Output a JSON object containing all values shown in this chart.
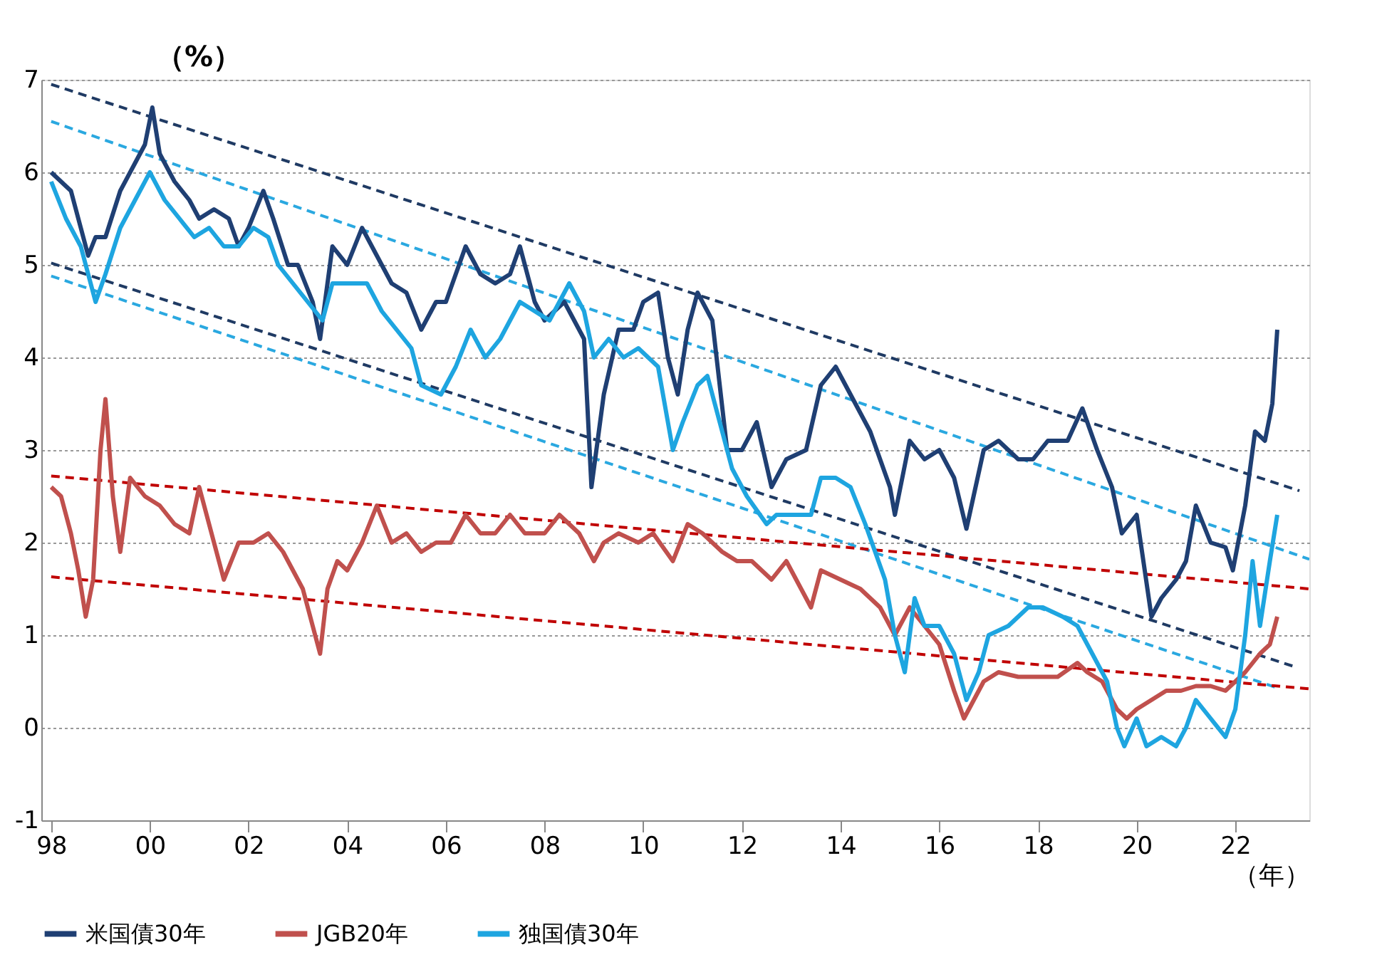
{
  "chart_data": {
    "type": "line",
    "xlabel": "（年）",
    "ylabel": "（%）",
    "xlim": [
      1997.8,
      2023.5
    ],
    "ylim": [
      -1,
      7
    ],
    "xticks": [
      {
        "value": 1998,
        "label": "98"
      },
      {
        "value": 2000,
        "label": "00"
      },
      {
        "value": 2002,
        "label": "02"
      },
      {
        "value": 2004,
        "label": "04"
      },
      {
        "value": 2006,
        "label": "06"
      },
      {
        "value": 2008,
        "label": "08"
      },
      {
        "value": 2010,
        "label": "10"
      },
      {
        "value": 2012,
        "label": "12"
      },
      {
        "value": 2014,
        "label": "14"
      },
      {
        "value": 2016,
        "label": "16"
      },
      {
        "value": 2018,
        "label": "18"
      },
      {
        "value": 2020,
        "label": "20"
      },
      {
        "value": 2022,
        "label": "22"
      }
    ],
    "yticks": [
      -1,
      0,
      1,
      2,
      3,
      4,
      5,
      6,
      7
    ],
    "grid": "y",
    "legend": "bottom",
    "marker": "none",
    "line_style": "solid",
    "series": [
      {
        "name": "米国債30年",
        "color": "#1f3f73",
        "x": [
          1998.0,
          1998.2,
          1998.4,
          1998.6,
          1998.75,
          1998.9,
          1999.1,
          1999.4,
          1999.7,
          1999.9,
          2000.05,
          2000.2,
          2000.5,
          2000.8,
          2001.0,
          2001.3,
          2001.6,
          2001.8,
          2002.0,
          2002.3,
          2002.5,
          2002.8,
          2003.0,
          2003.3,
          2003.45,
          2003.7,
          2004.0,
          2004.3,
          2004.6,
          2004.9,
          2005.2,
          2005.5,
          2005.8,
          2006.0,
          2006.4,
          2006.7,
          2007.0,
          2007.3,
          2007.5,
          2007.8,
          2008.0,
          2008.4,
          2008.6,
          2008.8,
          2008.95,
          2009.2,
          2009.5,
          2009.8,
          2010.0,
          2010.3,
          2010.5,
          2010.7,
          2010.9,
          2011.1,
          2011.4,
          2011.7,
          2012.0,
          2012.3,
          2012.6,
          2012.9,
          2013.3,
          2013.6,
          2013.9,
          2014.2,
          2014.6,
          2015.0,
          2015.1,
          2015.4,
          2015.7,
          2016.0,
          2016.3,
          2016.55,
          2016.9,
          2017.2,
          2017.6,
          2017.9,
          2018.2,
          2018.6,
          2018.9,
          2019.2,
          2019.5,
          2019.7,
          2020.0,
          2020.3,
          2020.5,
          2020.8,
          2021.0,
          2021.2,
          2021.5,
          2021.8,
          2021.95,
          2022.2,
          2022.4,
          2022.6,
          2022.75,
          2022.85
        ],
        "values": [
          6.0,
          5.9,
          5.8,
          5.4,
          5.1,
          5.3,
          5.3,
          5.8,
          6.1,
          6.3,
          6.7,
          6.2,
          5.9,
          5.7,
          5.5,
          5.6,
          5.5,
          5.2,
          5.4,
          5.8,
          5.5,
          5.0,
          5.0,
          4.6,
          4.2,
          5.2,
          5.0,
          5.4,
          5.1,
          4.8,
          4.7,
          4.3,
          4.6,
          4.6,
          5.2,
          4.9,
          4.8,
          4.9,
          5.2,
          4.6,
          4.4,
          4.6,
          4.4,
          4.2,
          2.6,
          3.6,
          4.3,
          4.3,
          4.6,
          4.7,
          4.0,
          3.6,
          4.3,
          4.7,
          4.4,
          3.0,
          3.0,
          3.3,
          2.6,
          2.9,
          3.0,
          3.7,
          3.9,
          3.6,
          3.2,
          2.6,
          2.3,
          3.1,
          2.9,
          3.0,
          2.7,
          2.15,
          3.0,
          3.1,
          2.9,
          2.9,
          3.1,
          3.1,
          3.45,
          3.0,
          2.6,
          2.1,
          2.3,
          1.2,
          1.4,
          1.6,
          1.8,
          2.4,
          2.0,
          1.95,
          1.7,
          2.4,
          3.2,
          3.1,
          3.5,
          4.3
        ]
      },
      {
        "name": "JGB20年",
        "color": "#c0504d",
        "x": [
          1998.0,
          1998.2,
          1998.4,
          1998.55,
          1998.7,
          1998.85,
          1999.0,
          1999.1,
          1999.25,
          1999.4,
          1999.6,
          1999.9,
          2000.2,
          2000.5,
          2000.8,
          2001.0,
          2001.3,
          2001.5,
          2001.8,
          2002.1,
          2002.4,
          2002.7,
          2002.9,
          2003.1,
          2003.3,
          2003.45,
          2003.6,
          2003.8,
          2004.0,
          2004.3,
          2004.6,
          2004.9,
          2005.2,
          2005.5,
          2005.8,
          2006.1,
          2006.4,
          2006.7,
          2007.0,
          2007.3,
          2007.6,
          2008.0,
          2008.3,
          2008.7,
          2009.0,
          2009.2,
          2009.5,
          2009.9,
          2010.2,
          2010.6,
          2010.9,
          2011.2,
          2011.6,
          2011.9,
          2012.2,
          2012.6,
          2012.9,
          2013.2,
          2013.4,
          2013.6,
          2014.0,
          2014.4,
          2014.8,
          2015.1,
          2015.4,
          2015.7,
          2016.0,
          2016.3,
          2016.5,
          2016.7,
          2016.9,
          2017.2,
          2017.6,
          2018.0,
          2018.4,
          2018.8,
          2019.0,
          2019.3,
          2019.6,
          2019.8,
          2020.0,
          2020.3,
          2020.6,
          2020.9,
          2021.2,
          2021.5,
          2021.8,
          2022.0,
          2022.2,
          2022.5,
          2022.7,
          2022.85
        ],
        "values": [
          2.6,
          2.5,
          2.1,
          1.7,
          1.2,
          1.6,
          3.0,
          3.55,
          2.5,
          1.9,
          2.7,
          2.5,
          2.4,
          2.2,
          2.1,
          2.6,
          2.0,
          1.6,
          2.0,
          2.0,
          2.1,
          1.9,
          1.7,
          1.5,
          1.1,
          0.8,
          1.5,
          1.8,
          1.7,
          2.0,
          2.4,
          2.0,
          2.1,
          1.9,
          2.0,
          2.0,
          2.3,
          2.1,
          2.1,
          2.3,
          2.1,
          2.1,
          2.3,
          2.1,
          1.8,
          2.0,
          2.1,
          2.0,
          2.1,
          1.8,
          2.2,
          2.1,
          1.9,
          1.8,
          1.8,
          1.6,
          1.8,
          1.5,
          1.3,
          1.7,
          1.6,
          1.5,
          1.3,
          1.0,
          1.3,
          1.1,
          0.9,
          0.4,
          0.1,
          0.3,
          0.5,
          0.6,
          0.55,
          0.55,
          0.55,
          0.7,
          0.6,
          0.5,
          0.2,
          0.1,
          0.2,
          0.3,
          0.4,
          0.4,
          0.45,
          0.45,
          0.4,
          0.5,
          0.6,
          0.8,
          0.9,
          1.2
        ]
      },
      {
        "name": "独国債30年",
        "color": "#1ea5e0",
        "x": [
          1998.0,
          1998.3,
          1998.6,
          1998.9,
          1999.1,
          1999.4,
          1999.7,
          2000.0,
          2000.3,
          2000.6,
          2000.9,
          2001.2,
          2001.5,
          2001.8,
          2002.1,
          2002.4,
          2002.6,
          2002.9,
          2003.2,
          2003.5,
          2003.7,
          2004.0,
          2004.4,
          2004.7,
          2005.0,
          2005.3,
          2005.5,
          2005.9,
          2006.2,
          2006.5,
          2006.8,
          2007.1,
          2007.5,
          2007.8,
          2008.1,
          2008.5,
          2008.8,
          2009.0,
          2009.3,
          2009.6,
          2009.9,
          2010.3,
          2010.6,
          2010.8,
          2011.1,
          2011.3,
          2011.6,
          2011.8,
          2012.1,
          2012.5,
          2012.7,
          2013.0,
          2013.4,
          2013.6,
          2013.9,
          2014.2,
          2014.5,
          2014.9,
          2015.1,
          2015.3,
          2015.5,
          2015.7,
          2016.0,
          2016.3,
          2016.55,
          2016.8,
          2017.0,
          2017.4,
          2017.8,
          2018.1,
          2018.5,
          2018.8,
          2019.1,
          2019.4,
          2019.6,
          2019.75,
          2020.0,
          2020.2,
          2020.5,
          2020.8,
          2021.0,
          2021.2,
          2021.5,
          2021.8,
          2022.0,
          2022.2,
          2022.35,
          2022.5,
          2022.7,
          2022.85
        ],
        "values": [
          5.9,
          5.5,
          5.2,
          4.6,
          4.9,
          5.4,
          5.7,
          6.0,
          5.7,
          5.5,
          5.3,
          5.4,
          5.2,
          5.2,
          5.4,
          5.3,
          5.0,
          4.8,
          4.6,
          4.4,
          4.8,
          4.8,
          4.8,
          4.5,
          4.3,
          4.1,
          3.7,
          3.6,
          3.9,
          4.3,
          4.0,
          4.2,
          4.6,
          4.5,
          4.4,
          4.8,
          4.5,
          4.0,
          4.2,
          4.0,
          4.1,
          3.9,
          3.0,
          3.3,
          3.7,
          3.8,
          3.2,
          2.8,
          2.5,
          2.2,
          2.3,
          2.3,
          2.3,
          2.7,
          2.7,
          2.6,
          2.2,
          1.6,
          1.0,
          0.6,
          1.4,
          1.1,
          1.1,
          0.8,
          0.3,
          0.6,
          1.0,
          1.1,
          1.3,
          1.3,
          1.2,
          1.1,
          0.8,
          0.5,
          0.0,
          -0.2,
          0.1,
          -0.2,
          -0.1,
          -0.2,
          0.0,
          0.3,
          0.1,
          -0.1,
          0.2,
          1.0,
          1.8,
          1.1,
          1.8,
          2.3
        ]
      },
      {
        "type": "line",
        "color": "#1f3a63",
        "line_style": "dashed",
        "x": [
          1998,
          2023.3
        ],
        "values": [
          6.95,
          2.56
        ]
      },
      {
        "type": "line",
        "color": "#1f3a63",
        "line_style": "dashed",
        "x": [
          1998,
          2023.2
        ],
        "values": [
          5.02,
          0.66
        ]
      },
      {
        "type": "line",
        "color": "#2aa8e0",
        "line_style": "dashed",
        "x": [
          1998,
          2023.5
        ],
        "values": [
          6.55,
          1.82
        ]
      },
      {
        "type": "line",
        "color": "#2aa8e0",
        "line_style": "dashed",
        "x": [
          1998,
          2022.8
        ],
        "values": [
          4.88,
          0.44
        ]
      },
      {
        "type": "line",
        "color": "#c00000",
        "line_style": "dashed",
        "x": [
          1998,
          2023.5
        ],
        "values": [
          2.72,
          1.5
        ]
      },
      {
        "type": "line",
        "color": "#c00000",
        "line_style": "dashed",
        "x": [
          1998,
          2023.5
        ],
        "values": [
          1.63,
          0.42
        ]
      }
    ]
  }
}
